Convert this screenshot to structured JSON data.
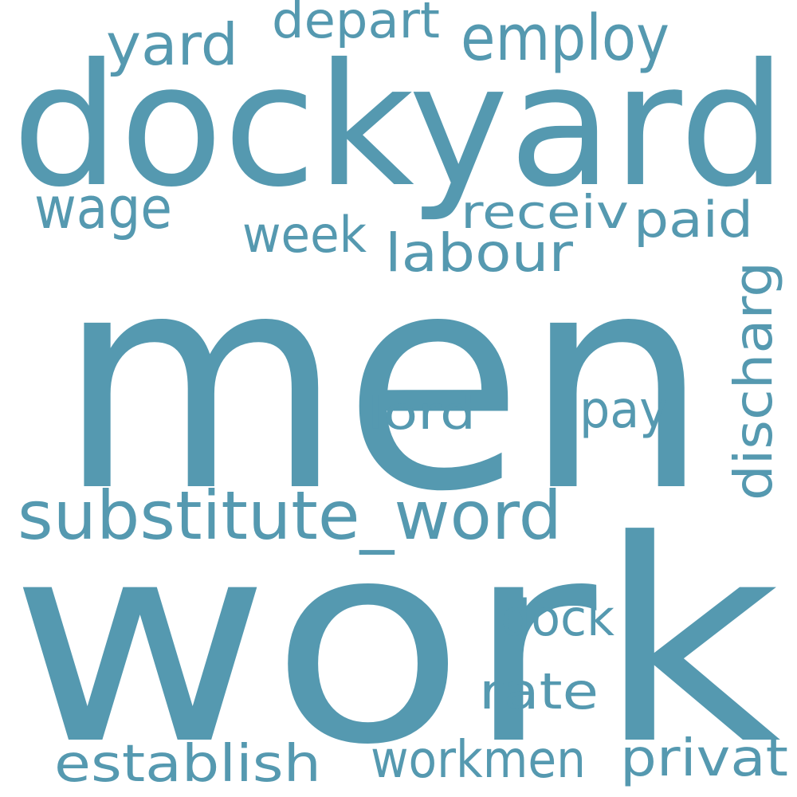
{
  "colors": {
    "background": "#ffffff",
    "word": "#5599b0"
  },
  "words": [
    {
      "text": "men",
      "weight": 100
    },
    {
      "text": "work",
      "weight": 94
    },
    {
      "text": "dockyard",
      "weight": 60
    },
    {
      "text": "substitute_word",
      "weight": 25
    },
    {
      "text": "employ",
      "weight": 20
    },
    {
      "text": "discharg",
      "weight": 19
    },
    {
      "text": "yard",
      "weight": 18
    },
    {
      "text": "wage",
      "weight": 18
    },
    {
      "text": "labour",
      "weight": 18
    },
    {
      "text": "depart",
      "weight": 17
    },
    {
      "text": "paid",
      "weight": 17
    },
    {
      "text": "receiv",
      "weight": 17
    },
    {
      "text": "week",
      "weight": 17
    },
    {
      "text": "privat",
      "weight": 17
    },
    {
      "text": "establish",
      "weight": 17
    },
    {
      "text": "workmen",
      "weight": 17
    },
    {
      "text": "pay",
      "weight": 17
    },
    {
      "text": "rate",
      "weight": 17
    },
    {
      "text": "dock",
      "weight": 17
    },
    {
      "text": "lord",
      "weight": 16
    }
  ]
}
